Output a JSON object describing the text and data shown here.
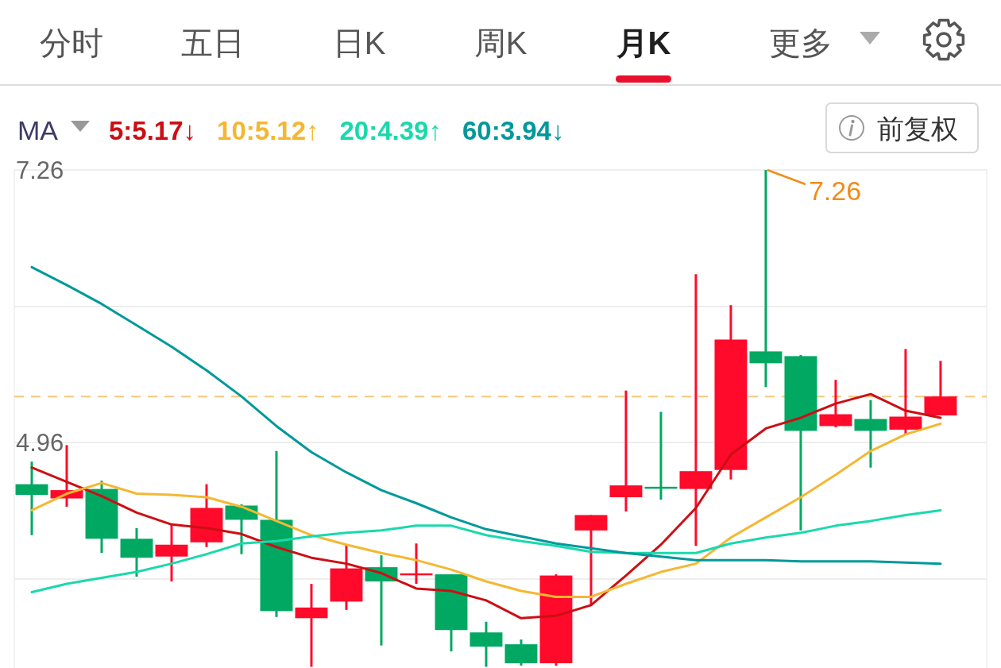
{
  "chart_data": {
    "type": "candlestick",
    "categories": [
      null,
      null,
      null,
      null,
      null,
      null,
      null,
      null,
      null,
      null,
      null,
      null,
      null,
      null,
      null,
      null,
      null,
      null,
      null,
      null,
      null,
      null,
      null,
      null,
      null,
      null,
      null
    ],
    "ohlc": [
      [
        4.61,
        4.8,
        4.18,
        4.52
      ],
      [
        4.49,
        4.94,
        4.42,
        4.56
      ],
      [
        4.57,
        4.64,
        4.03,
        4.15
      ],
      [
        4.15,
        4.24,
        3.83,
        3.99
      ],
      [
        4.0,
        4.27,
        3.79,
        4.1
      ],
      [
        4.12,
        4.61,
        4.08,
        4.41
      ],
      [
        4.43,
        4.44,
        4.02,
        4.31
      ],
      [
        4.31,
        4.89,
        3.49,
        3.54
      ],
      [
        3.48,
        3.77,
        3.07,
        3.57
      ],
      [
        3.62,
        4.1,
        3.55,
        3.9
      ],
      [
        3.91,
        4.01,
        3.25,
        3.79
      ],
      [
        3.85,
        4.11,
        3.77,
        3.85
      ],
      [
        3.85,
        3.85,
        3.2,
        3.38
      ],
      [
        3.36,
        3.45,
        3.07,
        3.24
      ],
      [
        3.26,
        3.3,
        3.08,
        3.1
      ],
      [
        3.1,
        3.85,
        3.08,
        3.84
      ],
      [
        4.22,
        4.35,
        3.59,
        4.35
      ],
      [
        4.5,
        5.4,
        4.38,
        4.6
      ],
      [
        4.58,
        5.22,
        4.48,
        4.58
      ],
      [
        4.57,
        6.38,
        4.09,
        4.72
      ],
      [
        4.73,
        6.12,
        4.65,
        5.83
      ],
      [
        5.73,
        7.26,
        5.43,
        5.63
      ],
      [
        5.69,
        5.7,
        4.22,
        5.06
      ],
      [
        5.1,
        5.49,
        5.09,
        5.2
      ],
      [
        5.16,
        5.32,
        4.75,
        5.06
      ],
      [
        5.07,
        5.75,
        5.03,
        5.18
      ],
      [
        5.19,
        5.65,
        5.19,
        5.35
      ]
    ],
    "colors": [
      "#00a862",
      "#ff0a2a",
      "#00a862",
      "#00a862",
      "#ff0a2a",
      "#ff0a2a",
      "#00a862",
      "#00a862",
      "#ff0a2a",
      "#ff0a2a",
      "#00a862",
      "#ff0a2a",
      "#00a862",
      "#00a862",
      "#00a862",
      "#ff0a2a",
      "#ff0a2a",
      "#ff0a2a",
      "#00a862",
      "#ff0a2a",
      "#ff0a2a",
      "#00a862",
      "#00a862",
      "#ff0a2a",
      "#00a862",
      "#ff0a2a",
      "#ff0a2a"
    ],
    "series": [
      {
        "name": "5:5.17↓",
        "type": "line",
        "color": "#cc0f14",
        "values": [
          4.75,
          4.63,
          4.51,
          4.37,
          4.27,
          4.24,
          4.19,
          4.08,
          3.99,
          3.94,
          3.86,
          3.73,
          3.71,
          3.63,
          3.48,
          3.5,
          3.59,
          3.84,
          4.1,
          4.41,
          4.86,
          5.08,
          5.17,
          5.29,
          5.37,
          5.23,
          5.17
        ]
      },
      {
        "name": "10:5.12↑",
        "type": "line",
        "color": "#f5b731",
        "values": [
          4.39,
          4.53,
          4.62,
          4.53,
          4.52,
          4.5,
          4.42,
          4.3,
          4.18,
          4.1,
          4.03,
          3.97,
          3.89,
          3.79,
          3.71,
          3.66,
          3.66,
          3.77,
          3.87,
          3.94,
          4.16,
          4.33,
          4.5,
          4.69,
          4.89,
          5.03,
          5.12
        ]
      },
      {
        "name": "20:4.39↑",
        "type": "line",
        "color": "#19d9ac",
        "values": [
          3.7,
          3.77,
          3.82,
          3.87,
          3.94,
          4.02,
          4.11,
          4.13,
          4.17,
          4.2,
          4.22,
          4.26,
          4.26,
          4.18,
          4.13,
          4.09,
          4.04,
          4.03,
          4.03,
          4.03,
          4.11,
          4.16,
          4.2,
          4.26,
          4.3,
          4.35,
          4.39
        ]
      },
      {
        "name": "60:3.94↓",
        "type": "line",
        "color": "#00999a",
        "values": [
          6.44,
          6.29,
          6.13,
          5.95,
          5.77,
          5.57,
          5.35,
          5.1,
          4.88,
          4.71,
          4.56,
          4.45,
          4.33,
          4.23,
          4.17,
          4.11,
          4.07,
          4.03,
          4.0,
          3.97,
          3.97,
          3.97,
          3.96,
          3.96,
          3.96,
          3.95,
          3.94
        ]
      }
    ],
    "ylim": [
      3.06,
      7.26
    ],
    "yticks": [
      7.26,
      {
        "value": 6.11,
        "label": null
      },
      4.96,
      {
        "value": 3.81,
        "label": null
      }
    ],
    "grid": "y",
    "tick_labels": "y",
    "legend": "top left",
    "legend_title": "MA",
    "ref_lines": [
      {
        "axis": "y",
        "value": 5.35,
        "color": "#f6c77c",
        "line_style": "dashed"
      }
    ],
    "annotations": [
      "分时",
      "五日",
      "日K",
      "周K",
      "月K",
      "更多",
      "前复权",
      "7.26"
    ]
  }
}
